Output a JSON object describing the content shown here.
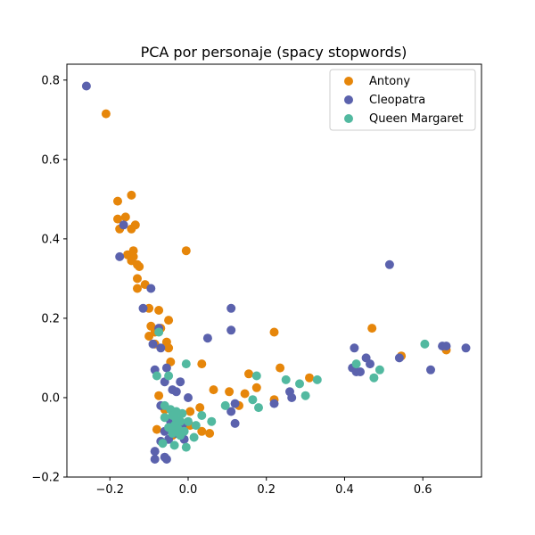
{
  "chart_data": {
    "type": "scatter",
    "title": "PCA por personaje (spacy stopwords)",
    "xlabel": "",
    "ylabel": "",
    "xlim": [
      -0.31,
      0.75
    ],
    "ylim": [
      -0.2,
      0.84
    ],
    "x_ticks": [
      -0.2,
      0.0,
      0.2,
      0.4,
      0.6
    ],
    "y_ticks": [
      -0.2,
      0.0,
      0.2,
      0.4,
      0.6,
      0.8
    ],
    "x_tick_labels": [
      "−0.2",
      "0.0",
      "0.2",
      "0.4",
      "0.6"
    ],
    "y_tick_labels": [
      "−0.2",
      "0.0",
      "0.2",
      "0.4",
      "0.6",
      "0.8"
    ],
    "grid": false,
    "legend_position": "top-right",
    "series": [
      {
        "name": "Antony",
        "color": "#e6860a",
        "points": [
          [
            -0.21,
            0.715
          ],
          [
            -0.18,
            0.495
          ],
          [
            -0.145,
            0.51
          ],
          [
            -0.18,
            0.45
          ],
          [
            -0.16,
            0.455
          ],
          [
            -0.135,
            0.435
          ],
          [
            -0.175,
            0.425
          ],
          [
            -0.145,
            0.425
          ],
          [
            -0.005,
            0.37
          ],
          [
            -0.14,
            0.37
          ],
          [
            -0.155,
            0.36
          ],
          [
            -0.14,
            0.355
          ],
          [
            -0.145,
            0.345
          ],
          [
            -0.13,
            0.335
          ],
          [
            -0.125,
            0.33
          ],
          [
            -0.13,
            0.3
          ],
          [
            -0.11,
            0.285
          ],
          [
            -0.13,
            0.275
          ],
          [
            -0.1,
            0.225
          ],
          [
            -0.075,
            0.22
          ],
          [
            -0.05,
            0.195
          ],
          [
            -0.095,
            0.18
          ],
          [
            -0.07,
            0.175
          ],
          [
            -0.085,
            0.165
          ],
          [
            -0.1,
            0.155
          ],
          [
            -0.055,
            0.14
          ],
          [
            -0.085,
            0.135
          ],
          [
            -0.05,
            0.125
          ],
          [
            -0.045,
            0.09
          ],
          [
            0.035,
            0.085
          ],
          [
            0.22,
            0.165
          ],
          [
            0.47,
            0.175
          ],
          [
            0.545,
            0.105
          ],
          [
            0.66,
            0.12
          ],
          [
            0.155,
            0.06
          ],
          [
            0.235,
            0.075
          ],
          [
            0.31,
            0.05
          ],
          [
            0.065,
            0.02
          ],
          [
            0.105,
            0.015
          ],
          [
            0.145,
            0.01
          ],
          [
            0.175,
            0.025
          ],
          [
            0.22,
            -0.005
          ],
          [
            0.13,
            -0.02
          ],
          [
            -0.075,
            0.005
          ],
          [
            -0.06,
            -0.03
          ],
          [
            -0.035,
            -0.05
          ],
          [
            0.005,
            -0.035
          ],
          [
            0.03,
            -0.025
          ],
          [
            -0.08,
            -0.08
          ],
          [
            0.035,
            -0.085
          ],
          [
            0.055,
            -0.09
          ],
          [
            -0.04,
            -0.095
          ],
          [
            0.005,
            -0.07
          ],
          [
            -0.02,
            -0.06
          ]
        ]
      },
      {
        "name": "Cleopatra",
        "color": "#5b62ad",
        "points": [
          [
            -0.26,
            0.785
          ],
          [
            -0.165,
            0.435
          ],
          [
            -0.175,
            0.355
          ],
          [
            -0.095,
            0.275
          ],
          [
            -0.115,
            0.225
          ],
          [
            0.11,
            0.225
          ],
          [
            -0.075,
            0.175
          ],
          [
            0.11,
            0.17
          ],
          [
            0.05,
            0.15
          ],
          [
            -0.09,
            0.135
          ],
          [
            -0.07,
            0.125
          ],
          [
            0.515,
            0.335
          ],
          [
            0.425,
            0.125
          ],
          [
            0.455,
            0.1
          ],
          [
            0.465,
            0.085
          ],
          [
            0.42,
            0.075
          ],
          [
            0.43,
            0.065
          ],
          [
            0.44,
            0.065
          ],
          [
            0.54,
            0.1
          ],
          [
            0.65,
            0.13
          ],
          [
            0.66,
            0.13
          ],
          [
            0.71,
            0.125
          ],
          [
            0.62,
            0.07
          ],
          [
            -0.085,
            0.07
          ],
          [
            -0.055,
            0.075
          ],
          [
            -0.02,
            0.04
          ],
          [
            -0.06,
            0.04
          ],
          [
            -0.04,
            0.02
          ],
          [
            -0.03,
            0.015
          ],
          [
            0.0,
            0.0
          ],
          [
            0.26,
            0.015
          ],
          [
            0.265,
            0.0
          ],
          [
            0.22,
            -0.015
          ],
          [
            0.12,
            -0.015
          ],
          [
            0.11,
            -0.035
          ],
          [
            0.12,
            -0.065
          ],
          [
            -0.07,
            -0.02
          ],
          [
            -0.045,
            -0.06
          ],
          [
            -0.06,
            -0.085
          ],
          [
            -0.07,
            -0.11
          ],
          [
            -0.05,
            -0.105
          ],
          [
            -0.03,
            -0.09
          ],
          [
            -0.01,
            -0.105
          ],
          [
            -0.085,
            -0.135
          ],
          [
            -0.085,
            -0.155
          ],
          [
            -0.06,
            -0.15
          ],
          [
            -0.055,
            -0.155
          ],
          [
            -0.035,
            -0.04
          ],
          [
            -0.015,
            -0.07
          ]
        ]
      },
      {
        "name": "Queen Margaret",
        "color": "#52b9a0",
        "points": [
          [
            -0.075,
            0.165
          ],
          [
            -0.005,
            0.085
          ],
          [
            -0.08,
            0.055
          ],
          [
            -0.05,
            0.055
          ],
          [
            0.175,
            0.055
          ],
          [
            0.25,
            0.045
          ],
          [
            0.285,
            0.035
          ],
          [
            0.33,
            0.045
          ],
          [
            0.3,
            0.005
          ],
          [
            0.43,
            0.085
          ],
          [
            0.49,
            0.07
          ],
          [
            0.475,
            0.05
          ],
          [
            0.605,
            0.135
          ],
          [
            0.165,
            -0.005
          ],
          [
            0.18,
            -0.025
          ],
          [
            0.095,
            -0.02
          ],
          [
            0.06,
            -0.06
          ],
          [
            0.035,
            -0.045
          ],
          [
            0.02,
            -0.07
          ],
          [
            0.015,
            -0.1
          ],
          [
            -0.005,
            -0.125
          ],
          [
            -0.035,
            -0.12
          ],
          [
            -0.065,
            -0.115
          ],
          [
            -0.06,
            -0.02
          ],
          [
            -0.045,
            -0.03
          ],
          [
            -0.04,
            -0.045
          ],
          [
            -0.03,
            -0.055
          ],
          [
            -0.02,
            -0.06
          ],
          [
            -0.035,
            -0.07
          ],
          [
            -0.05,
            -0.075
          ],
          [
            -0.025,
            -0.08
          ],
          [
            -0.01,
            -0.085
          ],
          [
            0.0,
            -0.06
          ],
          [
            -0.04,
            -0.09
          ],
          [
            -0.02,
            -0.095
          ],
          [
            -0.06,
            -0.05
          ],
          [
            -0.015,
            -0.04
          ],
          [
            -0.03,
            -0.035
          ]
        ]
      }
    ]
  }
}
